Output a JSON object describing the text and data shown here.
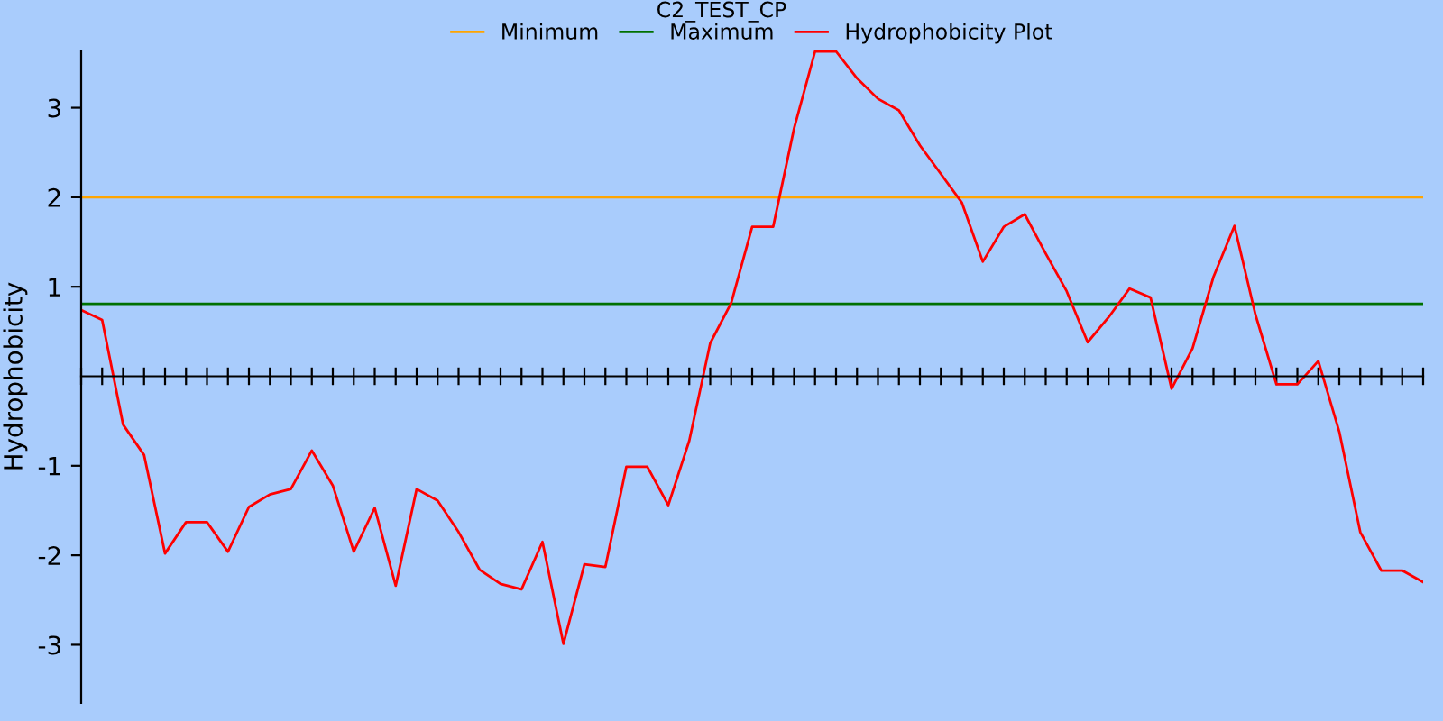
{
  "chart_data": {
    "type": "line",
    "title": "C2_TEST_CP",
    "ylabel": "Hydrophobicity",
    "categories": [
      null,
      null,
      null,
      null,
      null,
      null,
      null,
      null,
      null,
      null,
      null,
      null,
      null,
      null,
      null,
      null,
      null,
      null,
      null,
      null,
      null,
      null,
      null,
      null,
      null,
      null,
      null,
      null,
      null,
      null,
      null,
      null,
      null,
      null,
      null,
      null,
      null,
      null,
      null,
      null,
      null,
      null,
      null,
      null,
      null,
      null,
      null,
      null,
      null,
      null,
      null,
      null,
      null,
      null,
      null,
      null,
      null,
      null,
      null,
      null,
      null,
      null,
      null,
      null,
      null
    ],
    "series": [
      {
        "name": "Minimum",
        "color": "#ffa500",
        "values": [
          2,
          2,
          2,
          2,
          2,
          2,
          2,
          2,
          2,
          2,
          2,
          2,
          2,
          2,
          2,
          2,
          2,
          2,
          2,
          2,
          2,
          2,
          2,
          2,
          2,
          2,
          2,
          2,
          2,
          2,
          2,
          2,
          2,
          2,
          2,
          2,
          2,
          2,
          2,
          2,
          2,
          2,
          2,
          2,
          2,
          2,
          2,
          2,
          2,
          2,
          2,
          2,
          2,
          2,
          2,
          2,
          2,
          2,
          2,
          2,
          2,
          2,
          2,
          2,
          2
        ]
      },
      {
        "name": "Maximum",
        "color": "#007000",
        "values": [
          0.81,
          0.81,
          0.81,
          0.81,
          0.81,
          0.81,
          0.81,
          0.81,
          0.81,
          0.81,
          0.81,
          0.81,
          0.81,
          0.81,
          0.81,
          0.81,
          0.81,
          0.81,
          0.81,
          0.81,
          0.81,
          0.81,
          0.81,
          0.81,
          0.81,
          0.81,
          0.81,
          0.81,
          0.81,
          0.81,
          0.81,
          0.81,
          0.81,
          0.81,
          0.81,
          0.81,
          0.81,
          0.81,
          0.81,
          0.81,
          0.81,
          0.81,
          0.81,
          0.81,
          0.81,
          0.81,
          0.81,
          0.81,
          0.81,
          0.81,
          0.81,
          0.81,
          0.81,
          0.81,
          0.81,
          0.81,
          0.81,
          0.81,
          0.81,
          0.81,
          0.81,
          0.81,
          0.81,
          0.81,
          0.81
        ]
      },
      {
        "name": "Hydrophobicity Plot",
        "color": "#ff0000",
        "values": [
          0.74,
          0.63,
          -0.54,
          -0.88,
          -1.98,
          -1.63,
          -1.63,
          -1.96,
          -1.46,
          -1.32,
          -1.26,
          -0.83,
          -1.22,
          -1.96,
          -1.47,
          -2.34,
          -1.26,
          -1.39,
          -1.74,
          -2.16,
          -2.32,
          -2.38,
          -1.85,
          -2.99,
          -2.1,
          -2.13,
          -1.01,
          -1.01,
          -1.44,
          -0.72,
          0.37,
          0.82,
          1.67,
          1.67,
          2.77,
          3.63,
          3.63,
          3.33,
          3.1,
          2.97,
          2.58,
          2.26,
          1.94,
          1.28,
          1.67,
          1.81,
          1.37,
          0.95,
          0.38,
          0.66,
          0.98,
          0.88,
          -0.14,
          0.31,
          1.11,
          1.68,
          0.69,
          -0.09,
          -0.09,
          0.17,
          -0.62,
          -1.74,
          -2.17,
          -2.17,
          -2.3
        ]
      }
    ],
    "ylim": [
      -3.65,
      3.64
    ],
    "yticks": [
      -3,
      -2,
      -1,
      1,
      2,
      3
    ],
    "legend": "top",
    "marker": "none",
    "line_style": "solid",
    "tick_labels": "y"
  }
}
